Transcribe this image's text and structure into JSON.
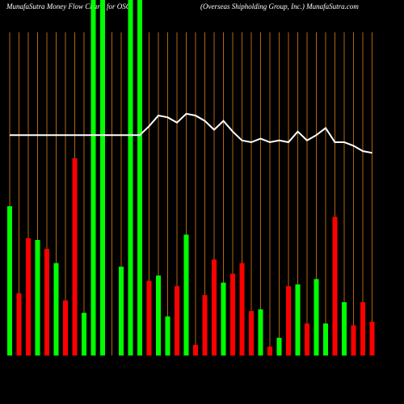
{
  "chart_data": {
    "type": "bar",
    "title": "MunafaSutra  Money Flow  Charts for OSG",
    "subtitle": "(Overseas Shipholding Group, Inc.) MunafaSutra.com",
    "ylim": [
      0,
      100
    ],
    "bars": {
      "values": [
        42,
        17.5,
        33,
        32.5,
        30,
        26,
        15.5,
        55.5,
        12,
        100,
        100,
        0,
        25,
        100,
        100,
        21,
        22.5,
        11,
        19.5,
        34,
        3,
        17,
        27,
        20.5,
        23,
        26,
        12.5,
        13,
        2.5,
        5,
        19.5,
        20,
        9,
        21.5,
        9,
        39,
        15,
        8.5,
        15,
        9.5
      ],
      "colors": [
        "#00ff00",
        "#ff0000",
        "#ff0000",
        "#00ff00",
        "#ff0000",
        "#00ff00",
        "#ff0000",
        "#ff0000",
        "#00ff00",
        "#00ff00",
        "#00ff00",
        "#ff0000",
        "#00ff00",
        "#00ff00",
        "#00ff00",
        "#ff0000",
        "#00ff00",
        "#00ff00",
        "#ff0000",
        "#00ff00",
        "#ff0000",
        "#ff0000",
        "#ff0000",
        "#00ff00",
        "#ff0000",
        "#ff0000",
        "#ff0000",
        "#00ff00",
        "#ff0000",
        "#00ff00",
        "#ff0000",
        "#00ff00",
        "#ff0000",
        "#00ff00",
        "#00ff00",
        "#ff0000",
        "#00ff00",
        "#ff0000",
        "#ff0000",
        "#ff0000"
      ]
    },
    "line": {
      "color": "#ffffff",
      "values": [
        62,
        62,
        62,
        62,
        62,
        62,
        62,
        62,
        62,
        62,
        62,
        62,
        62,
        62,
        62,
        64.5,
        67.5,
        67,
        65.5,
        68,
        67.5,
        66,
        63.5,
        66,
        63,
        60.5,
        60,
        61,
        60,
        60.5,
        60,
        63,
        60.5,
        62,
        64,
        60,
        60,
        59,
        57.5,
        57
      ]
    }
  }
}
